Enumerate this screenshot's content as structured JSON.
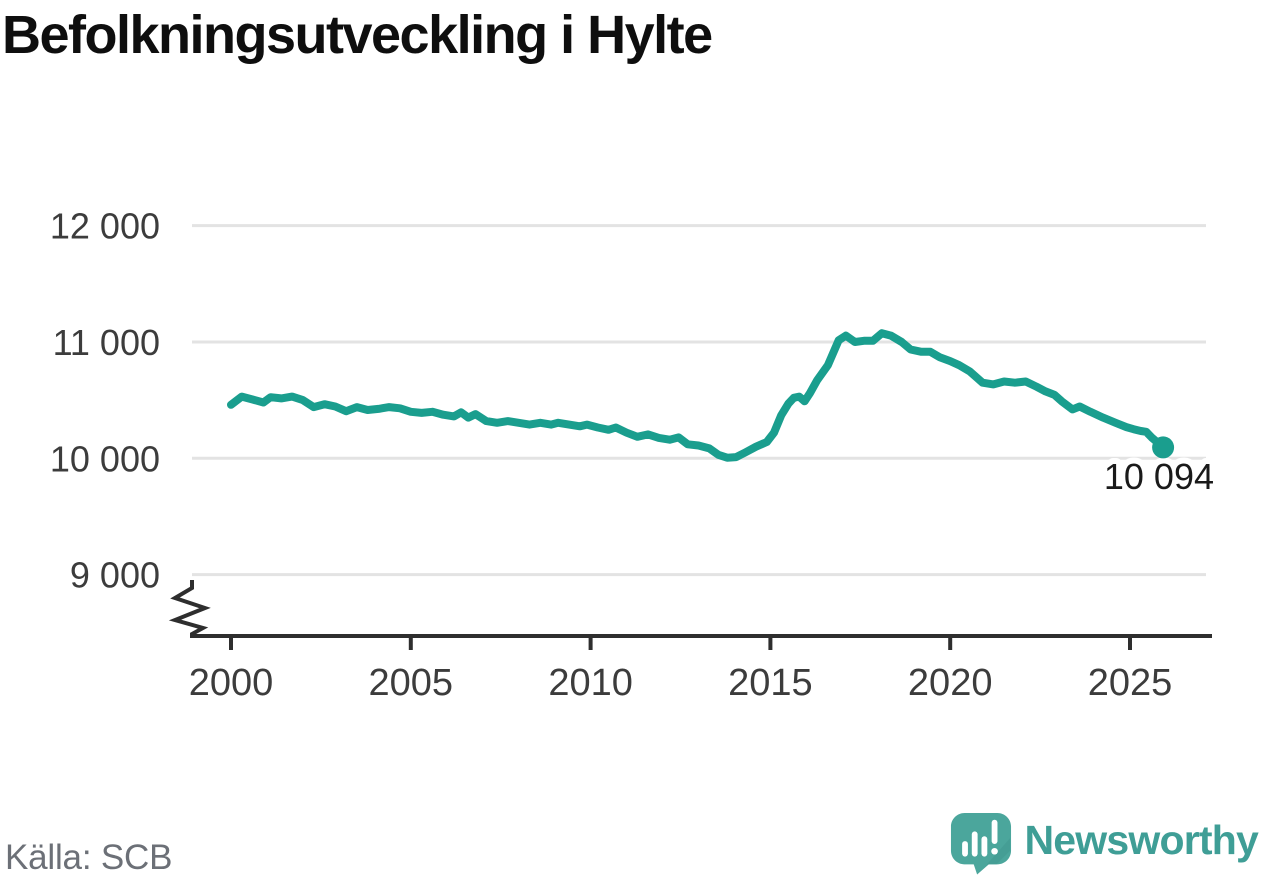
{
  "branding": {
    "logo_text": "Newsworthy"
  },
  "source": {
    "label": "Källa: SCB"
  },
  "colors": {
    "title": "#0e0e0e",
    "line": "#1a9e8e",
    "grid": "#e3e3e3",
    "axis": "#2e2e2e",
    "tick_label": "#3c3c3c",
    "annotation": "#1a1a1a",
    "source_text": "#6c7077",
    "logo_fill": "#4ba69c",
    "logo_shade": "#42988f",
    "logo_text_color": "#3f9e96"
  },
  "chart_data": {
    "type": "line",
    "title": "Befolkningsutveckling i Hylte",
    "xlabel": "",
    "ylabel": "",
    "grid": "horizontal-only",
    "legend": "none",
    "x_axis": {
      "ticks": [
        2000,
        2005,
        2010,
        2015,
        2020,
        2025
      ],
      "range": [
        2000,
        2026
      ]
    },
    "y_axis": {
      "axis_break": true,
      "range_shown": [
        9000,
        12000
      ],
      "ticks": [
        {
          "value": 12000,
          "label": "12 000"
        },
        {
          "value": 11000,
          "label": "11 000"
        },
        {
          "value": 10000,
          "label": "10 000"
        },
        {
          "value": 9000,
          "label": "9 000"
        }
      ]
    },
    "latest": {
      "value": 10094,
      "label": "10 094"
    },
    "series": [
      {
        "name": "Befolkningsutveckling i Hylte",
        "points": [
          [
            2000.0,
            10460
          ],
          [
            2000.3,
            10530
          ],
          [
            2000.6,
            10505
          ],
          [
            2000.9,
            10480
          ],
          [
            2001.1,
            10525
          ],
          [
            2001.4,
            10515
          ],
          [
            2001.7,
            10530
          ],
          [
            2002.0,
            10500
          ],
          [
            2002.3,
            10440
          ],
          [
            2002.6,
            10465
          ],
          [
            2002.9,
            10445
          ],
          [
            2003.2,
            10405
          ],
          [
            2003.5,
            10440
          ],
          [
            2003.8,
            10415
          ],
          [
            2004.1,
            10425
          ],
          [
            2004.4,
            10440
          ],
          [
            2004.7,
            10430
          ],
          [
            2005.0,
            10400
          ],
          [
            2005.3,
            10390
          ],
          [
            2005.6,
            10400
          ],
          [
            2005.9,
            10375
          ],
          [
            2006.2,
            10360
          ],
          [
            2006.4,
            10395
          ],
          [
            2006.6,
            10350
          ],
          [
            2006.8,
            10380
          ],
          [
            2007.1,
            10320
          ],
          [
            2007.4,
            10305
          ],
          [
            2007.7,
            10320
          ],
          [
            2008.0,
            10305
          ],
          [
            2008.3,
            10290
          ],
          [
            2008.6,
            10305
          ],
          [
            2008.9,
            10290
          ],
          [
            2009.1,
            10305
          ],
          [
            2009.4,
            10290
          ],
          [
            2009.7,
            10275
          ],
          [
            2009.9,
            10290
          ],
          [
            2010.2,
            10265
          ],
          [
            2010.5,
            10245
          ],
          [
            2010.7,
            10265
          ],
          [
            2011.0,
            10220
          ],
          [
            2011.3,
            10185
          ],
          [
            2011.6,
            10205
          ],
          [
            2011.9,
            10175
          ],
          [
            2012.2,
            10160
          ],
          [
            2012.45,
            10180
          ],
          [
            2012.7,
            10120
          ],
          [
            2013.0,
            10110
          ],
          [
            2013.3,
            10085
          ],
          [
            2013.55,
            10030
          ],
          [
            2013.8,
            10005
          ],
          [
            2014.05,
            10010
          ],
          [
            2014.3,
            10050
          ],
          [
            2014.6,
            10100
          ],
          [
            2014.9,
            10140
          ],
          [
            2015.1,
            10220
          ],
          [
            2015.3,
            10370
          ],
          [
            2015.5,
            10470
          ],
          [
            2015.65,
            10520
          ],
          [
            2015.8,
            10530
          ],
          [
            2015.95,
            10490
          ],
          [
            2016.1,
            10560
          ],
          [
            2016.3,
            10670
          ],
          [
            2016.6,
            10800
          ],
          [
            2016.9,
            11015
          ],
          [
            2017.1,
            11055
          ],
          [
            2017.35,
            11000
          ],
          [
            2017.6,
            11010
          ],
          [
            2017.85,
            11010
          ],
          [
            2018.1,
            11075
          ],
          [
            2018.35,
            11055
          ],
          [
            2018.65,
            11000
          ],
          [
            2018.9,
            10935
          ],
          [
            2019.2,
            10915
          ],
          [
            2019.45,
            10915
          ],
          [
            2019.7,
            10870
          ],
          [
            2020.0,
            10835
          ],
          [
            2020.25,
            10800
          ],
          [
            2020.55,
            10745
          ],
          [
            2020.9,
            10650
          ],
          [
            2021.2,
            10635
          ],
          [
            2021.5,
            10660
          ],
          [
            2021.8,
            10650
          ],
          [
            2022.1,
            10660
          ],
          [
            2022.4,
            10615
          ],
          [
            2022.65,
            10575
          ],
          [
            2022.9,
            10545
          ],
          [
            2023.1,
            10490
          ],
          [
            2023.4,
            10420
          ],
          [
            2023.6,
            10445
          ],
          [
            2023.9,
            10400
          ],
          [
            2024.25,
            10350
          ],
          [
            2024.6,
            10305
          ],
          [
            2024.9,
            10268
          ],
          [
            2025.1,
            10250
          ],
          [
            2025.3,
            10235
          ],
          [
            2025.45,
            10228
          ],
          [
            2025.6,
            10180
          ],
          [
            2025.75,
            10140
          ],
          [
            2025.92,
            10094
          ]
        ]
      }
    ]
  }
}
